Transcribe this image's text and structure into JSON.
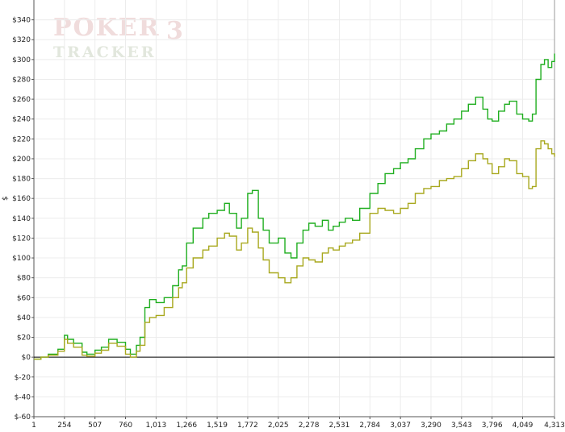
{
  "watermark": {
    "brand_top": "POKER",
    "brand_number": "3",
    "brand_bottom": "TRACKER"
  },
  "chart_data": {
    "type": "line",
    "title": "",
    "xlabel": "",
    "ylabel": "$",
    "xlim": [
      1,
      4313
    ],
    "ylim": [
      -60,
      360
    ],
    "x_ticks": [
      1,
      254,
      507,
      760,
      1013,
      1266,
      1519,
      1772,
      2025,
      2278,
      2531,
      2784,
      3037,
      3290,
      3543,
      3796,
      4049,
      4313
    ],
    "x_tick_labels": [
      "1",
      "254",
      "507",
      "760",
      "1,013",
      "1,266",
      "1,519",
      "1,772",
      "2,025",
      "2,278",
      "2,531",
      "2,784",
      "3,037",
      "3,290",
      "3,543",
      "3,796",
      "4,049",
      "4,313"
    ],
    "y_ticks": [
      -60,
      -40,
      -20,
      0,
      20,
      40,
      60,
      80,
      100,
      120,
      140,
      160,
      180,
      200,
      220,
      240,
      260,
      280,
      300,
      320,
      340
    ],
    "y_tick_labels": [
      "$-60",
      "$-40",
      "$-20",
      "$0",
      "$20",
      "$40",
      "$60",
      "$80",
      "$100",
      "$120",
      "$140",
      "$160",
      "$180",
      "$200",
      "$220",
      "$240",
      "$260",
      "$280",
      "$300",
      "$320",
      "$340"
    ],
    "grid": true,
    "zero_line": true,
    "series": [
      {
        "color": "#1fae1f",
        "x": [
          1,
          60,
          120,
          200,
          254,
          280,
          330,
          400,
          440,
          507,
          560,
          620,
          690,
          760,
          800,
          850,
          880,
          920,
          960,
          1013,
          1080,
          1150,
          1200,
          1230,
          1266,
          1320,
          1400,
          1450,
          1519,
          1580,
          1620,
          1680,
          1720,
          1772,
          1810,
          1860,
          1900,
          1950,
          2025,
          2080,
          2130,
          2180,
          2230,
          2278,
          2330,
          2390,
          2440,
          2480,
          2531,
          2580,
          2640,
          2700,
          2784,
          2850,
          2910,
          2980,
          3037,
          3100,
          3160,
          3230,
          3290,
          3360,
          3420,
          3480,
          3543,
          3600,
          3660,
          3720,
          3760,
          3796,
          3850,
          3900,
          3940,
          4000,
          4049,
          4100,
          4130,
          4160,
          4200,
          4230,
          4260,
          4290,
          4313
        ],
        "values": [
          -2,
          0,
          3,
          8,
          22,
          18,
          14,
          5,
          3,
          7,
          10,
          18,
          15,
          8,
          3,
          12,
          20,
          50,
          58,
          55,
          60,
          72,
          88,
          92,
          115,
          130,
          140,
          145,
          148,
          155,
          145,
          130,
          140,
          165,
          168,
          140,
          128,
          115,
          120,
          105,
          100,
          115,
          128,
          135,
          132,
          138,
          128,
          132,
          136,
          140,
          138,
          150,
          165,
          175,
          185,
          190,
          196,
          200,
          210,
          220,
          225,
          228,
          235,
          240,
          248,
          255,
          262,
          250,
          240,
          238,
          248,
          255,
          258,
          245,
          240,
          238,
          245,
          280,
          295,
          300,
          292,
          298,
          306
        ]
      },
      {
        "color": "#a8a81e",
        "x": [
          1,
          60,
          120,
          200,
          254,
          280,
          330,
          400,
          440,
          507,
          560,
          620,
          690,
          760,
          800,
          850,
          880,
          920,
          960,
          1013,
          1080,
          1150,
          1200,
          1230,
          1266,
          1320,
          1400,
          1450,
          1519,
          1580,
          1620,
          1680,
          1720,
          1772,
          1810,
          1860,
          1900,
          1950,
          2025,
          2080,
          2130,
          2180,
          2230,
          2278,
          2330,
          2390,
          2440,
          2480,
          2531,
          2580,
          2640,
          2700,
          2784,
          2850,
          2910,
          2980,
          3037,
          3100,
          3160,
          3230,
          3290,
          3360,
          3420,
          3480,
          3543,
          3600,
          3660,
          3720,
          3760,
          3796,
          3850,
          3900,
          3940,
          4000,
          4049,
          4100,
          4130,
          4160,
          4200,
          4230,
          4260,
          4290,
          4313
        ],
        "values": [
          -2,
          0,
          2,
          6,
          18,
          14,
          10,
          2,
          1,
          4,
          7,
          14,
          11,
          3,
          0,
          6,
          12,
          35,
          40,
          42,
          50,
          60,
          70,
          75,
          90,
          100,
          108,
          112,
          120,
          125,
          122,
          108,
          115,
          130,
          126,
          110,
          98,
          85,
          80,
          75,
          80,
          92,
          100,
          98,
          96,
          105,
          110,
          108,
          112,
          115,
          118,
          125,
          145,
          150,
          148,
          145,
          150,
          155,
          165,
          170,
          172,
          178,
          180,
          182,
          190,
          198,
          205,
          200,
          195,
          185,
          192,
          200,
          198,
          185,
          182,
          170,
          172,
          210,
          218,
          215,
          210,
          205,
          202
        ]
      }
    ]
  }
}
